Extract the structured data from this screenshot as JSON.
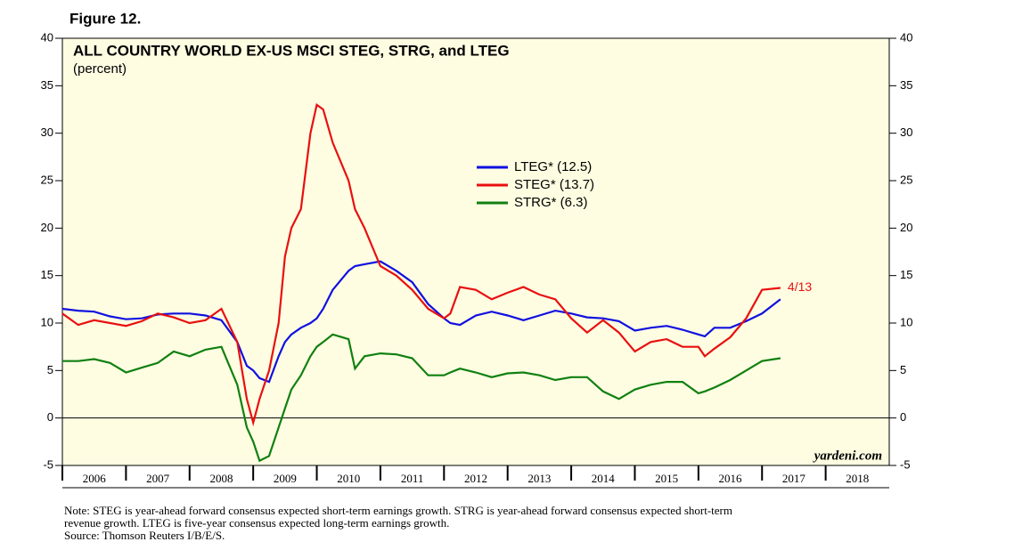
{
  "figure_label": "Figure 12.",
  "chart_data": {
    "type": "line",
    "title": "ALL COUNTRY WORLD EX-US MSCI STEG, STRG, and LTEG",
    "subtitle": "(percent)",
    "x": [
      2006.0,
      2006.25,
      2006.5,
      2006.75,
      2007.0,
      2007.25,
      2007.5,
      2007.75,
      2008.0,
      2008.25,
      2008.5,
      2008.75,
      2008.9,
      2009.0,
      2009.1,
      2009.25,
      2009.4,
      2009.5,
      2009.6,
      2009.75,
      2009.9,
      2010.0,
      2010.1,
      2010.25,
      2010.5,
      2010.6,
      2010.75,
      2011.0,
      2011.25,
      2011.5,
      2011.75,
      2012.0,
      2012.1,
      2012.25,
      2012.5,
      2012.75,
      2013.0,
      2013.25,
      2013.5,
      2013.75,
      2014.0,
      2014.25,
      2014.5,
      2014.75,
      2015.0,
      2015.25,
      2015.5,
      2015.75,
      2016.0,
      2016.1,
      2016.25,
      2016.5,
      2016.75,
      2017.0,
      2017.29
    ],
    "series": [
      {
        "name": "LTEG* (12.5)",
        "color": "#1010e0",
        "values": [
          11.5,
          11.3,
          11.2,
          10.7,
          10.4,
          10.5,
          10.9,
          11.0,
          11.0,
          10.8,
          10.3,
          8.0,
          5.5,
          5.0,
          4.2,
          3.8,
          6.5,
          8.0,
          8.8,
          9.5,
          10.0,
          10.5,
          11.5,
          13.5,
          15.5,
          16.0,
          16.2,
          16.5,
          15.5,
          14.3,
          12.0,
          10.5,
          10.0,
          9.8,
          10.8,
          11.2,
          10.8,
          10.3,
          10.8,
          11.3,
          11.0,
          10.6,
          10.5,
          10.2,
          9.2,
          9.5,
          9.7,
          9.3,
          8.8,
          8.6,
          9.5,
          9.5,
          10.2,
          11.0,
          12.5
        ]
      },
      {
        "name": "STEG* (13.7)",
        "color": "#e81010",
        "values": [
          11.0,
          9.8,
          10.3,
          10.0,
          9.7,
          10.2,
          11.0,
          10.6,
          10.0,
          10.3,
          11.5,
          8.0,
          2.0,
          -0.5,
          2.0,
          5.0,
          10.0,
          17.0,
          20.0,
          22.0,
          30.0,
          33.0,
          32.5,
          29.0,
          25.0,
          22.0,
          20.0,
          16.0,
          15.0,
          13.5,
          11.5,
          10.5,
          11.0,
          13.8,
          13.5,
          12.5,
          13.2,
          13.8,
          13.0,
          12.5,
          10.5,
          9.0,
          10.3,
          9.0,
          7.0,
          8.0,
          8.3,
          7.5,
          7.5,
          6.5,
          7.3,
          8.5,
          10.5,
          13.5,
          13.7
        ]
      },
      {
        "name": "STRG* (6.3)",
        "color": "#108010",
        "values": [
          6.0,
          6.0,
          6.2,
          5.8,
          4.8,
          5.3,
          5.8,
          7.0,
          6.5,
          7.2,
          7.5,
          3.5,
          -1.0,
          -2.5,
          -4.5,
          -4.0,
          -1.0,
          1.0,
          3.0,
          4.5,
          6.5,
          7.5,
          8.0,
          8.8,
          8.3,
          5.2,
          6.5,
          6.8,
          6.7,
          6.3,
          4.5,
          4.5,
          4.8,
          5.2,
          4.8,
          4.3,
          4.7,
          4.8,
          4.5,
          4.0,
          4.3,
          4.3,
          2.8,
          2.0,
          3.0,
          3.5,
          3.8,
          3.8,
          2.6,
          2.8,
          3.2,
          4.0,
          5.0,
          6.0,
          6.3
        ]
      }
    ],
    "end_label": "4/13",
    "xlim": [
      2006,
      2019
    ],
    "xticks": [
      {
        "value": 2006.5,
        "label": "2006"
      },
      {
        "value": 2007.5,
        "label": "2007"
      },
      {
        "value": 2008.5,
        "label": "2008"
      },
      {
        "value": 2009.5,
        "label": "2009"
      },
      {
        "value": 2010.5,
        "label": "2010"
      },
      {
        "value": 2011.5,
        "label": "2011"
      },
      {
        "value": 2012.5,
        "label": "2012"
      },
      {
        "value": 2013.5,
        "label": "2013"
      },
      {
        "value": 2014.5,
        "label": "2014"
      },
      {
        "value": 2015.5,
        "label": "2015"
      },
      {
        "value": 2016.5,
        "label": "2016"
      },
      {
        "value": 2017.5,
        "label": "2017"
      },
      {
        "value": 2018.5,
        "label": "2018"
      }
    ],
    "ylim": [
      -5,
      40
    ],
    "yticks": [
      -5,
      0,
      5,
      10,
      15,
      20,
      25,
      30,
      35,
      40
    ],
    "watermark": "yardeni.com"
  },
  "notes": [
    "Note: STEG is year-ahead forward consensus expected short-term earnings growth. STRG is year-ahead forward consensus expected short-term",
    "revenue growth. LTEG is five-year consensus expected long-term earnings growth.",
    "Source: Thomson Reuters I/B/E/S."
  ]
}
